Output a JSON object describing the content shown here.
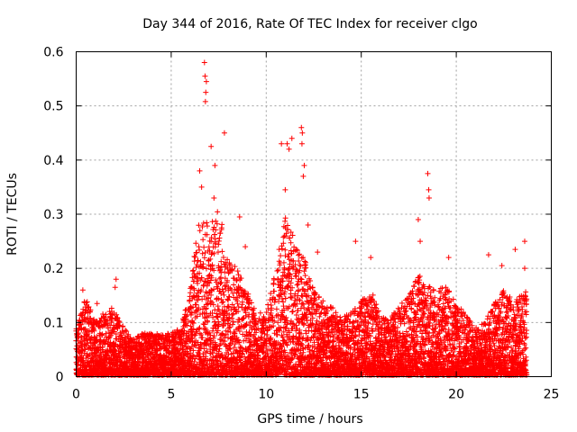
{
  "chart_data": {
    "type": "scatter",
    "title": "Day 344 of 2016, Rate Of TEC Index for receiver clgo",
    "xlabel": "GPS time / hours",
    "ylabel": "ROTI / TECUs",
    "xlim": [
      0,
      25
    ],
    "ylim": [
      0,
      0.6
    ],
    "xticks": [
      0,
      5,
      10,
      15,
      20,
      25
    ],
    "yticks": [
      0,
      0.1,
      0.2,
      0.3,
      0.4,
      0.5,
      0.6
    ],
    "xtick_labels": [
      "0",
      "5",
      "10",
      "15",
      "20",
      "25"
    ],
    "ytick_labels": [
      "0",
      "0.1",
      "0.2",
      "0.3",
      "0.4",
      "0.5",
      "0.6"
    ],
    "grid": true,
    "marker": "+",
    "series": [
      {
        "name": "ROTI",
        "color": "#ff0000",
        "envelope": [
          {
            "x": 0.0,
            "ymax": 0.09
          },
          {
            "x": 0.5,
            "ymax": 0.15
          },
          {
            "x": 1.0,
            "ymax": 0.1
          },
          {
            "x": 1.5,
            "ymax": 0.12
          },
          {
            "x": 2.0,
            "ymax": 0.13
          },
          {
            "x": 2.5,
            "ymax": 0.09
          },
          {
            "x": 3.0,
            "ymax": 0.07
          },
          {
            "x": 3.5,
            "ymax": 0.08
          },
          {
            "x": 4.0,
            "ymax": 0.08
          },
          {
            "x": 4.5,
            "ymax": 0.08
          },
          {
            "x": 5.0,
            "ymax": 0.08
          },
          {
            "x": 5.5,
            "ymax": 0.09
          },
          {
            "x": 6.0,
            "ymax": 0.17
          },
          {
            "x": 6.5,
            "ymax": 0.3
          },
          {
            "x": 7.0,
            "ymax": 0.28
          },
          {
            "x": 7.5,
            "ymax": 0.32
          },
          {
            "x": 8.0,
            "ymax": 0.22
          },
          {
            "x": 8.5,
            "ymax": 0.2
          },
          {
            "x": 9.0,
            "ymax": 0.16
          },
          {
            "x": 9.5,
            "ymax": 0.12
          },
          {
            "x": 10.0,
            "ymax": 0.12
          },
          {
            "x": 10.5,
            "ymax": 0.2
          },
          {
            "x": 11.0,
            "ymax": 0.3
          },
          {
            "x": 11.5,
            "ymax": 0.25
          },
          {
            "x": 12.0,
            "ymax": 0.22
          },
          {
            "x": 12.5,
            "ymax": 0.16
          },
          {
            "x": 13.0,
            "ymax": 0.14
          },
          {
            "x": 13.5,
            "ymax": 0.13
          },
          {
            "x": 14.0,
            "ymax": 0.11
          },
          {
            "x": 14.5,
            "ymax": 0.12
          },
          {
            "x": 15.0,
            "ymax": 0.14
          },
          {
            "x": 15.5,
            "ymax": 0.16
          },
          {
            "x": 16.0,
            "ymax": 0.12
          },
          {
            "x": 16.5,
            "ymax": 0.11
          },
          {
            "x": 17.0,
            "ymax": 0.13
          },
          {
            "x": 17.5,
            "ymax": 0.15
          },
          {
            "x": 18.0,
            "ymax": 0.19
          },
          {
            "x": 18.5,
            "ymax": 0.17
          },
          {
            "x": 19.0,
            "ymax": 0.16
          },
          {
            "x": 19.5,
            "ymax": 0.17
          },
          {
            "x": 20.0,
            "ymax": 0.13
          },
          {
            "x": 20.5,
            "ymax": 0.12
          },
          {
            "x": 21.0,
            "ymax": 0.09
          },
          {
            "x": 21.5,
            "ymax": 0.1
          },
          {
            "x": 22.0,
            "ymax": 0.14
          },
          {
            "x": 22.5,
            "ymax": 0.16
          },
          {
            "x": 23.0,
            "ymax": 0.14
          },
          {
            "x": 23.5,
            "ymax": 0.16
          }
        ],
        "peaks": [
          {
            "x": 0.35,
            "y": 0.16
          },
          {
            "x": 1.1,
            "y": 0.135
          },
          {
            "x": 2.1,
            "y": 0.18
          },
          {
            "x": 2.05,
            "y": 0.165
          },
          {
            "x": 6.75,
            "y": 0.58
          },
          {
            "x": 6.78,
            "y": 0.555
          },
          {
            "x": 6.85,
            "y": 0.545
          },
          {
            "x": 6.82,
            "y": 0.525
          },
          {
            "x": 6.8,
            "y": 0.508
          },
          {
            "x": 7.1,
            "y": 0.425
          },
          {
            "x": 7.8,
            "y": 0.45
          },
          {
            "x": 6.5,
            "y": 0.38
          },
          {
            "x": 6.6,
            "y": 0.35
          },
          {
            "x": 7.3,
            "y": 0.39
          },
          {
            "x": 7.25,
            "y": 0.33
          },
          {
            "x": 8.6,
            "y": 0.295
          },
          {
            "x": 8.9,
            "y": 0.24
          },
          {
            "x": 10.8,
            "y": 0.43
          },
          {
            "x": 11.1,
            "y": 0.43
          },
          {
            "x": 11.2,
            "y": 0.42
          },
          {
            "x": 11.35,
            "y": 0.44
          },
          {
            "x": 11.85,
            "y": 0.46
          },
          {
            "x": 11.9,
            "y": 0.45
          },
          {
            "x": 11.88,
            "y": 0.43
          },
          {
            "x": 12.0,
            "y": 0.39
          },
          {
            "x": 11.95,
            "y": 0.37
          },
          {
            "x": 11.0,
            "y": 0.345
          },
          {
            "x": 12.2,
            "y": 0.28
          },
          {
            "x": 12.7,
            "y": 0.23
          },
          {
            "x": 14.7,
            "y": 0.25
          },
          {
            "x": 15.5,
            "y": 0.22
          },
          {
            "x": 18.0,
            "y": 0.29
          },
          {
            "x": 18.5,
            "y": 0.375
          },
          {
            "x": 18.55,
            "y": 0.345
          },
          {
            "x": 18.57,
            "y": 0.33
          },
          {
            "x": 18.1,
            "y": 0.25
          },
          {
            "x": 19.6,
            "y": 0.22
          },
          {
            "x": 21.7,
            "y": 0.225
          },
          {
            "x": 22.4,
            "y": 0.205
          },
          {
            "x": 23.1,
            "y": 0.235
          },
          {
            "x": 23.6,
            "y": 0.25
          },
          {
            "x": 23.6,
            "y": 0.2
          }
        ],
        "baseline_min": 0.003
      }
    ]
  }
}
